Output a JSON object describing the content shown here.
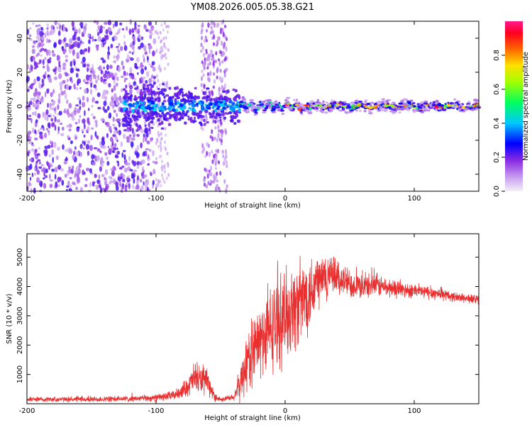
{
  "title": "YM08.2026.005.05.38.G21",
  "colors": {
    "snr_line": "#e83030",
    "spectrogram_base": "#8a2be2",
    "axis": "#000000",
    "background": "#ffffff"
  },
  "chart_data": [
    {
      "type": "heatmap",
      "name": "spectrogram",
      "xlabel": "Height of straight line (km)",
      "ylabel": "Frequency (Hz)",
      "xlim": [
        -200,
        150
      ],
      "ylim": [
        -50,
        50
      ],
      "xticks": [
        -200,
        -100,
        0,
        100
      ],
      "yticks": [
        -40,
        -20,
        0,
        20,
        40
      ],
      "colorbar": {
        "label": "Normalized spectral amplitude",
        "range": [
          0.0,
          1.0
        ],
        "ticks": [
          "0.0",
          "0.2",
          "0.4",
          "0.6",
          "0.8"
        ],
        "tick_values": [
          0.0,
          0.2,
          0.4,
          0.6,
          0.8
        ],
        "colormap": [
          "#f0f0f8",
          "#8a2be2",
          "#0000ff",
          "#00ffff",
          "#00ff00",
          "#ffff00",
          "#ff8000",
          "#ff0000",
          "#ff00a0"
        ]
      },
      "regions": [
        {
          "x": [
            -200,
            -100
          ],
          "description_level": 0.2,
          "freq_spread": [
            -50,
            50
          ]
        },
        {
          "x": [
            -100,
            -35
          ],
          "description_level": 0.3,
          "freq_spread": [
            -20,
            20
          ]
        },
        {
          "x": [
            -65,
            -45
          ],
          "description_level": 0.15,
          "freq_spread": [
            -50,
            50
          ]
        },
        {
          "x": [
            -35,
            150
          ],
          "description_level": 0.6,
          "freq_spread": [
            -3,
            3
          ]
        }
      ]
    },
    {
      "type": "line",
      "name": "snr",
      "xlabel": "Height of straight line (km)",
      "ylabel": "SNR (10 * v/v)",
      "xlim": [
        -200,
        150
      ],
      "ylim": [
        0,
        5800
      ],
      "xticks": [
        -200,
        -100,
        0,
        100
      ],
      "yticks": [
        1000,
        2000,
        3000,
        4000,
        5000
      ],
      "envelope": {
        "x": [
          -200,
          -150,
          -120,
          -100,
          -85,
          -75,
          -70,
          -65,
          -60,
          -55,
          -50,
          -40,
          -35,
          -30,
          -25,
          -20,
          -10,
          0,
          10,
          20,
          25,
          30,
          40,
          50,
          60,
          70,
          80,
          90,
          100,
          110,
          120,
          130,
          140,
          150
        ],
        "y_mid": [
          150,
          150,
          170,
          200,
          300,
          600,
          900,
          800,
          700,
          250,
          150,
          200,
          700,
          1400,
          1800,
          2100,
          2600,
          3000,
          3400,
          3900,
          4200,
          4300,
          4300,
          4100,
          4000,
          4050,
          3950,
          3900,
          3850,
          3800,
          3750,
          3650,
          3600,
          3550
        ],
        "spread": [
          100,
          120,
          120,
          150,
          200,
          400,
          700,
          600,
          500,
          200,
          100,
          150,
          700,
          1300,
          1400,
          1600,
          1800,
          1900,
          1800,
          1600,
          1400,
          1100,
          800,
          600,
          500,
          500,
          400,
          350,
          300,
          300,
          250,
          200,
          200,
          200
        ]
      }
    }
  ]
}
